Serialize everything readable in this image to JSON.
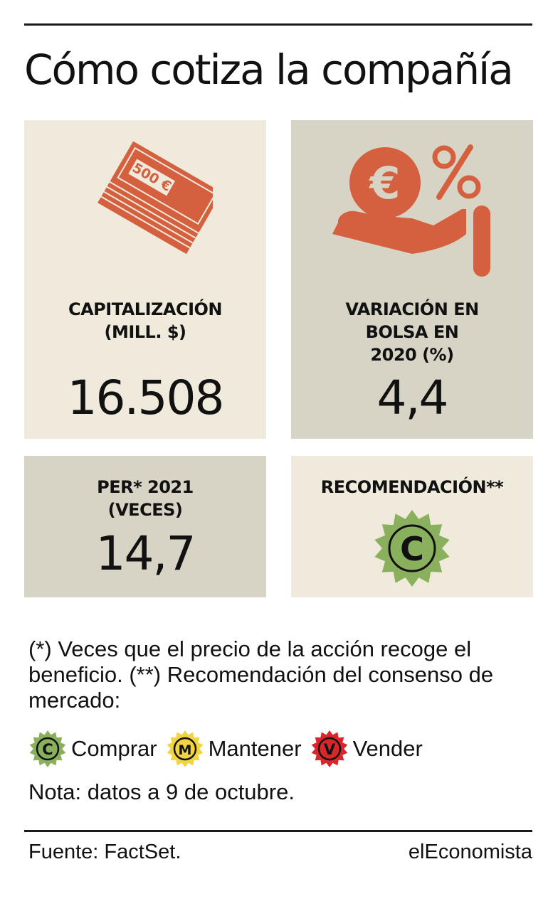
{
  "title": "Cómo cotiza la compañía",
  "colors": {
    "accent_orange": "#d4603f",
    "card_light": "#efeadb",
    "card_dark": "#d8d4c5",
    "comprar_green": "#8ab05e",
    "mantener_yellow": "#f2d43f",
    "vender_red": "#d8262b",
    "rule": "#1a1a1a"
  },
  "cards": {
    "capitalizacion": {
      "icon": "banknote-stack-icon",
      "banknote_text": "500 €",
      "label_line1": "CAPITALIZACIÓN",
      "label_line2": "(MILL. $)",
      "value": "16.508"
    },
    "variacion": {
      "icon": "hand-euro-percent-icon",
      "label_line1": "VARIACIÓN EN",
      "label_line2": "BOLSA EN",
      "label_line3": "2020 (%)",
      "value": "4,4"
    },
    "per": {
      "label_line1": "PER* 2021",
      "label_line2": "(VECES)",
      "value": "14,7"
    },
    "recomendacion": {
      "label": "RECOMENDACIÓN**",
      "badge_letter": "C",
      "badge_color": "#8ab05e"
    }
  },
  "notes": {
    "text": "(*) Veces que el precio de la acción recoge el beneficio. (**) Recomendación del consenso de mercado:",
    "legend": [
      {
        "letter": "C",
        "label": "Comprar",
        "color": "#8ab05e"
      },
      {
        "letter": "M",
        "label": "Mantener",
        "color": "#f2d43f"
      },
      {
        "letter": "V",
        "label": "Vender",
        "color": "#d8262b"
      }
    ],
    "date_note": "Nota: datos a 9 de octubre."
  },
  "footer": {
    "source": "Fuente: FactSet.",
    "brand": "elEconomista"
  }
}
